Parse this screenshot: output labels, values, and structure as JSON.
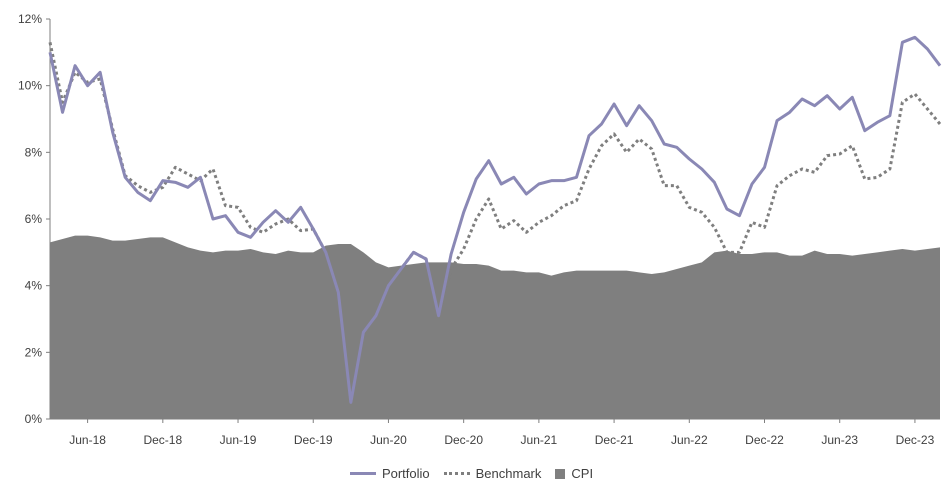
{
  "chart_data": {
    "type": "line",
    "title": "",
    "xlabel": "",
    "ylabel": "",
    "ylim": [
      0,
      12
    ],
    "yticks": [
      "0%",
      "2%",
      "4%",
      "6%",
      "8%",
      "10%",
      "12%"
    ],
    "ytick_values": [
      0,
      2,
      4,
      6,
      8,
      10,
      12
    ],
    "xtick_labels": [
      "Jun-18",
      "Dec-18",
      "Jun-19",
      "Dec-19",
      "Jun-20",
      "Dec-20",
      "Jun-21",
      "Dec-21",
      "Jun-22",
      "Dec-22",
      "Jun-23",
      "Dec-23"
    ],
    "xtick_indices": [
      3,
      9,
      15,
      21,
      27,
      33,
      39,
      45,
      51,
      57,
      63,
      69
    ],
    "x": [
      "Mar-18",
      "Apr-18",
      "May-18",
      "Jun-18",
      "Jul-18",
      "Aug-18",
      "Sep-18",
      "Oct-18",
      "Nov-18",
      "Dec-18",
      "Jan-19",
      "Feb-19",
      "Mar-19",
      "Apr-19",
      "May-19",
      "Jun-19",
      "Jul-19",
      "Aug-19",
      "Sep-19",
      "Oct-19",
      "Nov-19",
      "Dec-19",
      "Jan-20",
      "Feb-20",
      "Mar-20",
      "Apr-20",
      "May-20",
      "Jun-20",
      "Jul-20",
      "Aug-20",
      "Sep-20",
      "Oct-20",
      "Nov-20",
      "Dec-20",
      "Jan-21",
      "Feb-21",
      "Mar-21",
      "Apr-21",
      "May-21",
      "Jun-21",
      "Jul-21",
      "Aug-21",
      "Sep-21",
      "Oct-21",
      "Nov-21",
      "Dec-21",
      "Jan-22",
      "Feb-22",
      "Mar-22",
      "Apr-22",
      "May-22",
      "Jun-22",
      "Jul-22",
      "Aug-22",
      "Sep-22",
      "Oct-22",
      "Nov-22",
      "Dec-22",
      "Jan-23",
      "Feb-23",
      "Mar-23",
      "Apr-23",
      "May-23",
      "Jun-23",
      "Jul-23",
      "Aug-23",
      "Sep-23",
      "Oct-23",
      "Nov-23",
      "Dec-23",
      "Jan-24",
      "Feb-24"
    ],
    "series": [
      {
        "name": "CPI",
        "style": "area",
        "color": "#7f7f7f",
        "values": [
          5.3,
          5.4,
          5.5,
          5.5,
          5.45,
          5.35,
          5.35,
          5.4,
          5.45,
          5.45,
          5.3,
          5.15,
          5.05,
          5.0,
          5.05,
          5.05,
          5.1,
          5.0,
          4.95,
          5.05,
          5.0,
          5.0,
          5.2,
          5.25,
          5.25,
          5.0,
          4.7,
          4.55,
          4.6,
          4.65,
          4.7,
          4.7,
          4.7,
          4.65,
          4.65,
          4.6,
          4.45,
          4.45,
          4.4,
          4.4,
          4.3,
          4.4,
          4.45,
          4.45,
          4.45,
          4.45,
          4.45,
          4.4,
          4.35,
          4.4,
          4.5,
          4.6,
          4.7,
          5.0,
          5.05,
          4.95,
          4.95,
          5.0,
          5.0,
          4.9,
          4.9,
          5.05,
          4.95,
          4.95,
          4.9,
          4.95,
          5.0,
          5.05,
          5.1,
          5.05,
          5.1,
          5.15
        ]
      },
      {
        "name": "Benchmark",
        "style": "dotted",
        "color": "#7f7f7f",
        "values": [
          11.3,
          9.5,
          10.4,
          10.1,
          10.2,
          8.7,
          7.3,
          7.0,
          6.8,
          6.95,
          7.55,
          7.35,
          7.15,
          7.5,
          6.4,
          6.35,
          5.75,
          5.6,
          5.85,
          6.0,
          5.65,
          5.7,
          5.0,
          3.8,
          0.5,
          2.6,
          3.1,
          4.0,
          4.5,
          5.0,
          4.8,
          3.1,
          4.5,
          5.1,
          6.0,
          6.6,
          5.7,
          5.95,
          5.6,
          5.9,
          6.1,
          6.4,
          6.55,
          7.5,
          8.2,
          8.55,
          8.0,
          8.4,
          8.1,
          7.0,
          7.0,
          6.35,
          6.2,
          5.75,
          5.0,
          5.0,
          5.9,
          5.75,
          7.0,
          7.3,
          7.5,
          7.4,
          7.9,
          7.95,
          8.2,
          7.2,
          7.25,
          7.5,
          9.5,
          9.75,
          9.3,
          8.85
        ]
      },
      {
        "name": "Portfolio",
        "style": "solid",
        "color": "#8a88b5",
        "values": [
          11.0,
          9.2,
          10.6,
          10.0,
          10.4,
          8.6,
          7.25,
          6.8,
          6.55,
          7.15,
          7.1,
          6.95,
          7.25,
          6.0,
          6.1,
          5.6,
          5.45,
          5.9,
          6.25,
          5.9,
          6.35,
          5.7,
          5.0,
          3.8,
          0.5,
          2.6,
          3.1,
          4.0,
          4.5,
          5.0,
          4.8,
          3.1,
          4.95,
          6.2,
          7.2,
          7.75,
          7.05,
          7.25,
          6.75,
          7.05,
          7.15,
          7.15,
          7.25,
          8.5,
          8.85,
          9.45,
          8.8,
          9.4,
          8.95,
          8.25,
          8.15,
          7.8,
          7.5,
          7.1,
          6.3,
          6.1,
          7.05,
          7.55,
          8.95,
          9.2,
          9.6,
          9.4,
          9.7,
          9.3,
          9.65,
          8.65,
          8.9,
          9.1,
          11.3,
          11.45,
          11.1,
          10.6
        ]
      }
    ],
    "legend": {
      "position": "bottom",
      "entries": [
        "Portfolio",
        "Benchmark",
        "CPI"
      ]
    },
    "grid": false
  }
}
